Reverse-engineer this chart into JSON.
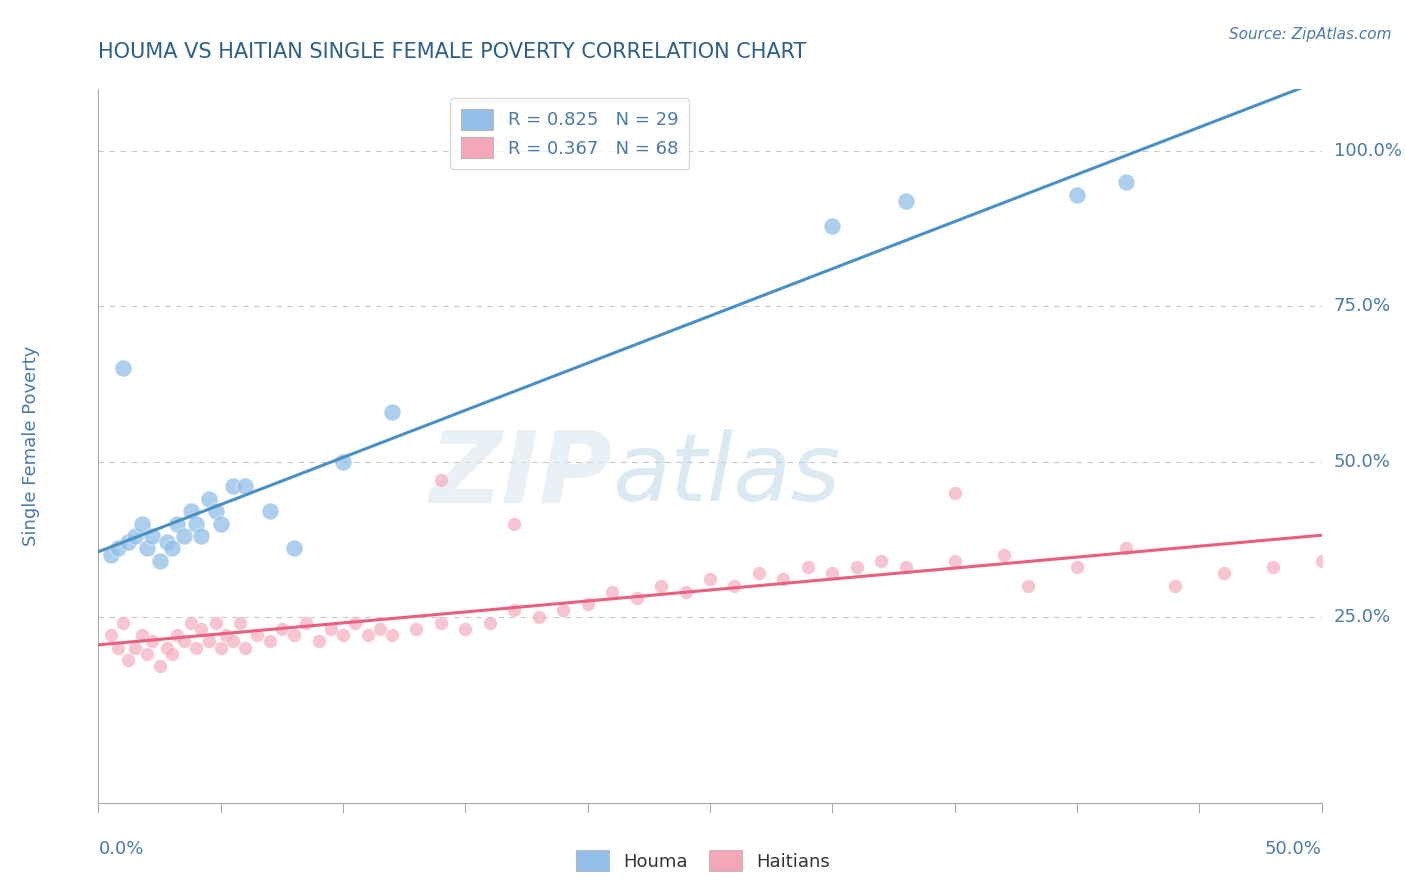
{
  "title": "HOUMA VS HAITIAN SINGLE FEMALE POVERTY CORRELATION CHART",
  "source_text": "Source: ZipAtlas.com",
  "ylabel": "Single Female Poverty",
  "right_yticks": [
    "25.0%",
    "50.0%",
    "75.0%",
    "100.0%"
  ],
  "right_ytick_vals": [
    0.25,
    0.5,
    0.75,
    1.0
  ],
  "xlim": [
    0.0,
    0.5
  ],
  "ylim": [
    -0.05,
    1.1
  ],
  "watermark_zip": "ZIP",
  "watermark_atlas": "atlas",
  "houma_color": "#92bfe8",
  "haitian_color": "#f4a7b9",
  "houma_line_color": "#4a90c4",
  "haitian_line_color": "#e86080",
  "background_color": "#ffffff",
  "grid_color": "#c8c8c8",
  "title_color": "#2c5f8a",
  "axis_label_color": "#4a7aaa",
  "legend_label_color": "#4a7aaa",
  "houma_x": [
    0.005,
    0.008,
    0.01,
    0.012,
    0.015,
    0.018,
    0.02,
    0.022,
    0.025,
    0.028,
    0.03,
    0.032,
    0.035,
    0.038,
    0.04,
    0.042,
    0.045,
    0.048,
    0.05,
    0.055,
    0.06,
    0.07,
    0.08,
    0.1,
    0.12,
    0.3,
    0.33,
    0.4,
    0.42
  ],
  "houma_y": [
    0.35,
    0.36,
    0.65,
    0.37,
    0.38,
    0.4,
    0.36,
    0.38,
    0.34,
    0.37,
    0.36,
    0.4,
    0.38,
    0.42,
    0.4,
    0.38,
    0.44,
    0.42,
    0.4,
    0.46,
    0.46,
    0.42,
    0.36,
    0.5,
    0.58,
    0.88,
    0.92,
    0.93,
    0.95
  ],
  "haitian_x": [
    0.005,
    0.008,
    0.01,
    0.012,
    0.015,
    0.018,
    0.02,
    0.022,
    0.025,
    0.028,
    0.03,
    0.032,
    0.035,
    0.038,
    0.04,
    0.042,
    0.045,
    0.048,
    0.05,
    0.052,
    0.055,
    0.058,
    0.06,
    0.065,
    0.07,
    0.075,
    0.08,
    0.085,
    0.09,
    0.095,
    0.1,
    0.105,
    0.11,
    0.115,
    0.12,
    0.13,
    0.14,
    0.15,
    0.16,
    0.17,
    0.18,
    0.19,
    0.2,
    0.21,
    0.22,
    0.23,
    0.24,
    0.25,
    0.26,
    0.27,
    0.28,
    0.29,
    0.3,
    0.31,
    0.32,
    0.33,
    0.35,
    0.37,
    0.38,
    0.4,
    0.42,
    0.44,
    0.46,
    0.48,
    0.5,
    0.14,
    0.17,
    0.35
  ],
  "haitian_y": [
    0.22,
    0.2,
    0.24,
    0.18,
    0.2,
    0.22,
    0.19,
    0.21,
    0.17,
    0.2,
    0.19,
    0.22,
    0.21,
    0.24,
    0.2,
    0.23,
    0.21,
    0.24,
    0.2,
    0.22,
    0.21,
    0.24,
    0.2,
    0.22,
    0.21,
    0.23,
    0.22,
    0.24,
    0.21,
    0.23,
    0.22,
    0.24,
    0.22,
    0.23,
    0.22,
    0.23,
    0.24,
    0.23,
    0.24,
    0.26,
    0.25,
    0.26,
    0.27,
    0.29,
    0.28,
    0.3,
    0.29,
    0.31,
    0.3,
    0.32,
    0.31,
    0.33,
    0.32,
    0.33,
    0.34,
    0.33,
    0.34,
    0.35,
    0.3,
    0.33,
    0.36,
    0.3,
    0.32,
    0.33,
    0.34,
    0.47,
    0.4,
    0.45
  ]
}
